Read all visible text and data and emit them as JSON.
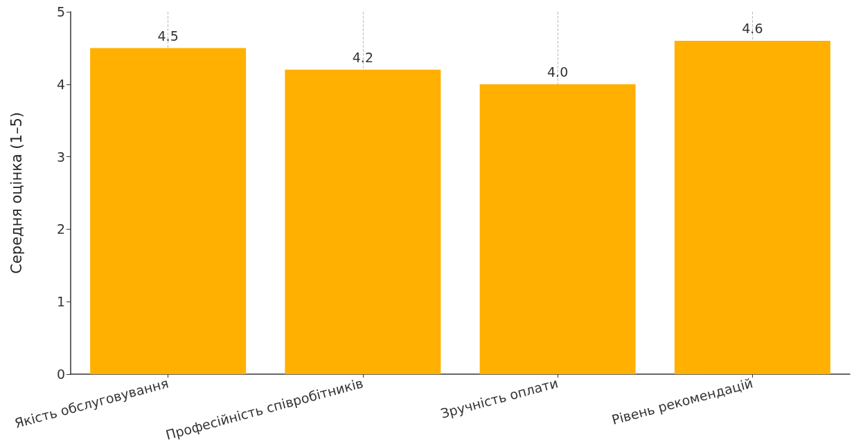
{
  "chart_data": {
    "type": "bar",
    "ylabel": "Середня оцінка (1–5)",
    "categories": [
      "Якість обслуговування",
      "Професійність співробітників",
      "Зручність оплати",
      "Рівень рекомендацій"
    ],
    "values": [
      4.5,
      4.2,
      4.0,
      4.6
    ],
    "color": "#ffb000",
    "value_labels": [
      "4.5",
      "4.2",
      "4.0",
      "4.6"
    ],
    "ylim": [
      0,
      5
    ],
    "yticks": [
      0,
      1,
      2,
      3,
      4,
      5
    ],
    "grid": "x"
  }
}
